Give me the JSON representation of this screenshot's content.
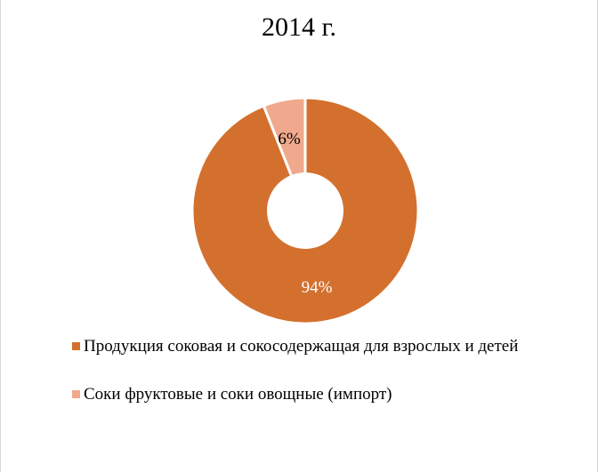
{
  "title": "2014 г.",
  "colors": {
    "series_1": "#D4702E",
    "series_2": "#F0A98C"
  },
  "labels": {
    "slice_1": "94%",
    "slice_2": "6%"
  },
  "legend": [
    {
      "label": "Продукция соковая и сокосодержащая для взрослых и детей",
      "color": "#D4702E"
    },
    {
      "label": "Соки фруктовые и соки овощные (импорт)",
      "color": "#F0A98C"
    }
  ],
  "chart_data": {
    "type": "pie",
    "subtype": "doughnut",
    "title": "2014 г.",
    "categories": [
      "Продукция соковая и сокосодержащая для взрослых и детей",
      "Соки фруктовые и соки овощные (импорт)"
    ],
    "values": [
      94,
      6
    ],
    "unit": "%",
    "data_labels": [
      "94%",
      "6%"
    ],
    "colors": [
      "#D4702E",
      "#F0A98C"
    ],
    "legend_position": "bottom",
    "start_angle_deg": 0,
    "direction": "clockwise"
  }
}
